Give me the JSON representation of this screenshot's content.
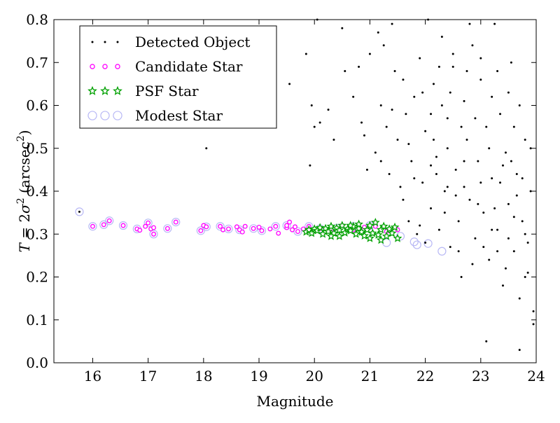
{
  "chart_data": {
    "type": "scatter",
    "title": "",
    "xlabel": "Magnitude",
    "ylabel_parts": {
      "prefix": "T",
      "mid": " = 2",
      "sigma": "σ",
      "sup": "2",
      "unit_open": " (arcsec",
      "unit_sup": "2",
      "unit_close": ")"
    },
    "xlim": [
      15.3,
      24.0
    ],
    "ylim": [
      0.0,
      0.8
    ],
    "x_ticks": [
      16,
      17,
      18,
      19,
      20,
      21,
      22,
      23,
      24
    ],
    "x_tick_labels": [
      "16",
      "17",
      "18",
      "19",
      "20",
      "21",
      "22",
      "23",
      "24"
    ],
    "y_ticks": [
      0.0,
      0.1,
      0.2,
      0.3,
      0.4,
      0.5,
      0.6,
      0.7,
      0.8
    ],
    "y_tick_labels": [
      "0.0",
      "0.1",
      "0.2",
      "0.3",
      "0.4",
      "0.5",
      "0.6",
      "0.7",
      "0.8"
    ],
    "grid": false,
    "legend_position": "top-left",
    "series": [
      {
        "name": "Detected Object",
        "marker": "dot",
        "color": "#000000",
        "points": [
          [
            15.76,
            0.352
          ],
          [
            18.05,
            0.5
          ],
          [
            19.55,
            0.65
          ],
          [
            19.85,
            0.72
          ],
          [
            20.05,
            0.8
          ],
          [
            19.95,
            0.6
          ],
          [
            19.92,
            0.46
          ],
          [
            20.0,
            0.55
          ],
          [
            20.1,
            0.56
          ],
          [
            20.25,
            0.59
          ],
          [
            20.35,
            0.52
          ],
          [
            20.5,
            0.78
          ],
          [
            20.55,
            0.68
          ],
          [
            20.7,
            0.62
          ],
          [
            20.8,
            0.69
          ],
          [
            20.85,
            0.56
          ],
          [
            20.9,
            0.53
          ],
          [
            20.95,
            0.45
          ],
          [
            21.0,
            0.72
          ],
          [
            21.1,
            0.49
          ],
          [
            21.15,
            0.77
          ],
          [
            21.2,
            0.6
          ],
          [
            21.25,
            0.74
          ],
          [
            21.3,
            0.55
          ],
          [
            21.35,
            0.44
          ],
          [
            21.4,
            0.79
          ],
          [
            21.45,
            0.68
          ],
          [
            21.5,
            0.52
          ],
          [
            21.55,
            0.41
          ],
          [
            21.6,
            0.38
          ],
          [
            21.65,
            0.58
          ],
          [
            21.7,
            0.33
          ],
          [
            21.75,
            0.47
          ],
          [
            21.8,
            0.62
          ],
          [
            21.85,
            0.3
          ],
          [
            21.9,
            0.71
          ],
          [
            21.95,
            0.42
          ],
          [
            22.0,
            0.54
          ],
          [
            22.05,
            0.8
          ],
          [
            22.1,
            0.36
          ],
          [
            22.15,
            0.65
          ],
          [
            22.2,
            0.48
          ],
          [
            22.25,
            0.31
          ],
          [
            22.3,
            0.76
          ],
          [
            22.35,
            0.4
          ],
          [
            22.4,
            0.57
          ],
          [
            22.45,
            0.27
          ],
          [
            22.5,
            0.69
          ],
          [
            22.55,
            0.45
          ],
          [
            22.6,
            0.33
          ],
          [
            22.65,
            0.2
          ],
          [
            22.7,
            0.61
          ],
          [
            22.75,
            0.52
          ],
          [
            22.8,
            0.38
          ],
          [
            22.85,
            0.74
          ],
          [
            22.9,
            0.29
          ],
          [
            22.95,
            0.47
          ],
          [
            23.0,
            0.66
          ],
          [
            23.05,
            0.35
          ],
          [
            23.1,
            0.55
          ],
          [
            23.15,
            0.24
          ],
          [
            23.2,
            0.43
          ],
          [
            23.25,
            0.79
          ],
          [
            23.3,
            0.31
          ],
          [
            23.35,
            0.58
          ],
          [
            23.4,
            0.18
          ],
          [
            23.45,
            0.49
          ],
          [
            23.5,
            0.37
          ],
          [
            23.55,
            0.7
          ],
          [
            23.6,
            0.26
          ],
          [
            23.65,
            0.44
          ],
          [
            23.7,
            0.15
          ],
          [
            23.75,
            0.33
          ],
          [
            23.8,
            0.52
          ],
          [
            23.85,
            0.21
          ],
          [
            23.9,
            0.4
          ],
          [
            23.95,
            0.12
          ],
          [
            23.1,
            0.05
          ],
          [
            23.7,
            0.03
          ],
          [
            23.95,
            0.09
          ],
          [
            22.6,
            0.26
          ],
          [
            22.0,
            0.28
          ],
          [
            21.9,
            0.32
          ],
          [
            22.2,
            0.44
          ],
          [
            22.4,
            0.5
          ],
          [
            22.7,
            0.41
          ],
          [
            22.9,
            0.57
          ],
          [
            23.2,
            0.62
          ],
          [
            23.4,
            0.46
          ],
          [
            23.6,
            0.55
          ],
          [
            23.8,
            0.3
          ],
          [
            22.3,
            0.6
          ],
          [
            22.5,
            0.72
          ],
          [
            22.8,
            0.79
          ],
          [
            23.0,
            0.71
          ],
          [
            23.3,
            0.68
          ],
          [
            23.5,
            0.63
          ],
          [
            23.7,
            0.6
          ],
          [
            22.1,
            0.46
          ],
          [
            22.35,
            0.35
          ],
          [
            22.55,
            0.39
          ],
          [
            22.85,
            0.23
          ],
          [
            23.05,
            0.27
          ],
          [
            23.25,
            0.36
          ],
          [
            23.45,
            0.22
          ],
          [
            23.65,
            0.39
          ],
          [
            23.85,
            0.28
          ],
          [
            22.15,
            0.52
          ],
          [
            22.45,
            0.63
          ],
          [
            22.75,
            0.68
          ],
          [
            23.15,
            0.5
          ],
          [
            23.35,
            0.42
          ],
          [
            23.55,
            0.47
          ],
          [
            23.75,
            0.43
          ],
          [
            23.9,
            0.5
          ],
          [
            21.7,
            0.51
          ],
          [
            21.95,
            0.63
          ],
          [
            22.25,
            0.69
          ],
          [
            22.65,
            0.55
          ],
          [
            22.95,
            0.37
          ],
          [
            23.2,
            0.31
          ],
          [
            23.5,
            0.29
          ],
          [
            23.8,
            0.2
          ],
          [
            23.6,
            0.34
          ],
          [
            23.3,
            0.26
          ],
          [
            23.0,
            0.42
          ],
          [
            22.7,
            0.47
          ],
          [
            22.4,
            0.41
          ],
          [
            22.1,
            0.58
          ],
          [
            21.8,
            0.43
          ],
          [
            21.6,
            0.66
          ],
          [
            21.4,
            0.59
          ],
          [
            21.2,
            0.47
          ]
        ]
      },
      {
        "name": "Candidate Star",
        "marker": "ring-magenta",
        "color": "#ff00ff",
        "points": [
          [
            16.0,
            0.318
          ],
          [
            16.2,
            0.322
          ],
          [
            16.3,
            0.331
          ],
          [
            16.55,
            0.32
          ],
          [
            16.8,
            0.312
          ],
          [
            16.85,
            0.309
          ],
          [
            16.95,
            0.318
          ],
          [
            17.0,
            0.326
          ],
          [
            17.05,
            0.312
          ],
          [
            17.1,
            0.315
          ],
          [
            17.1,
            0.3
          ],
          [
            17.35,
            0.313
          ],
          [
            17.5,
            0.328
          ],
          [
            17.95,
            0.308
          ],
          [
            18.0,
            0.32
          ],
          [
            18.05,
            0.317
          ],
          [
            18.3,
            0.318
          ],
          [
            18.35,
            0.31
          ],
          [
            18.45,
            0.312
          ],
          [
            18.6,
            0.317
          ],
          [
            18.65,
            0.31
          ],
          [
            18.7,
            0.305
          ],
          [
            18.75,
            0.318
          ],
          [
            18.9,
            0.313
          ],
          [
            19.0,
            0.316
          ],
          [
            19.05,
            0.308
          ],
          [
            19.2,
            0.312
          ],
          [
            19.3,
            0.318
          ],
          [
            19.35,
            0.302
          ],
          [
            19.5,
            0.315
          ],
          [
            19.5,
            0.32
          ],
          [
            19.55,
            0.328
          ],
          [
            19.6,
            0.31
          ],
          [
            19.65,
            0.317
          ],
          [
            19.7,
            0.306
          ],
          [
            19.8,
            0.312
          ],
          [
            19.9,
            0.318
          ],
          [
            20.0,
            0.308
          ],
          [
            20.1,
            0.313
          ],
          [
            20.3,
            0.305
          ],
          [
            20.5,
            0.32
          ],
          [
            20.7,
            0.31
          ],
          [
            20.9,
            0.316
          ],
          [
            21.1,
            0.318
          ],
          [
            21.3,
            0.306
          ],
          [
            21.5,
            0.31
          ]
        ]
      },
      {
        "name": "PSF Star",
        "marker": "star-green",
        "color": "#00a000",
        "points": [
          [
            19.85,
            0.305
          ],
          [
            19.9,
            0.31
          ],
          [
            19.95,
            0.302
          ],
          [
            20.0,
            0.312
          ],
          [
            20.05,
            0.308
          ],
          [
            20.1,
            0.315
          ],
          [
            20.15,
            0.3
          ],
          [
            20.2,
            0.313
          ],
          [
            20.25,
            0.306
          ],
          [
            20.3,
            0.318
          ],
          [
            20.35,
            0.302
          ],
          [
            20.4,
            0.314
          ],
          [
            20.45,
            0.309
          ],
          [
            20.5,
            0.32
          ],
          [
            20.55,
            0.303
          ],
          [
            20.6,
            0.312
          ],
          [
            20.65,
            0.308
          ],
          [
            20.7,
            0.318
          ],
          [
            20.75,
            0.3
          ],
          [
            20.8,
            0.313
          ],
          [
            20.85,
            0.305
          ],
          [
            20.9,
            0.296
          ],
          [
            20.95,
            0.31
          ],
          [
            21.0,
            0.32
          ],
          [
            21.05,
            0.302
          ],
          [
            21.1,
            0.327
          ],
          [
            21.15,
            0.298
          ],
          [
            21.2,
            0.31
          ],
          [
            21.25,
            0.318
          ],
          [
            21.3,
            0.295
          ],
          [
            21.35,
            0.312
          ],
          [
            21.4,
            0.302
          ],
          [
            21.45,
            0.316
          ],
          [
            21.5,
            0.29
          ],
          [
            20.45,
            0.295
          ],
          [
            20.65,
            0.32
          ],
          [
            20.8,
            0.323
          ],
          [
            21.0,
            0.29
          ],
          [
            21.2,
            0.286
          ],
          [
            20.3,
            0.295
          ]
        ]
      },
      {
        "name": "Modest Star",
        "marker": "ring-lavender",
        "color": "#b8b8f5",
        "points": [
          [
            15.76,
            0.352
          ],
          [
            16.0,
            0.318
          ],
          [
            16.2,
            0.322
          ],
          [
            16.3,
            0.331
          ],
          [
            16.55,
            0.32
          ],
          [
            16.8,
            0.312
          ],
          [
            17.0,
            0.326
          ],
          [
            17.1,
            0.3
          ],
          [
            17.35,
            0.313
          ],
          [
            17.5,
            0.328
          ],
          [
            17.95,
            0.308
          ],
          [
            18.05,
            0.317
          ],
          [
            18.3,
            0.318
          ],
          [
            18.45,
            0.312
          ],
          [
            18.65,
            0.31
          ],
          [
            18.9,
            0.313
          ],
          [
            19.05,
            0.308
          ],
          [
            19.3,
            0.318
          ],
          [
            19.5,
            0.32
          ],
          [
            19.7,
            0.306
          ],
          [
            19.9,
            0.318
          ],
          [
            20.1,
            0.313
          ],
          [
            20.4,
            0.314
          ],
          [
            20.7,
            0.318
          ],
          [
            21.0,
            0.32
          ],
          [
            21.3,
            0.28
          ],
          [
            21.55,
            0.295
          ],
          [
            21.8,
            0.282
          ],
          [
            21.85,
            0.275
          ],
          [
            22.05,
            0.278
          ],
          [
            22.3,
            0.26
          ]
        ]
      }
    ]
  }
}
